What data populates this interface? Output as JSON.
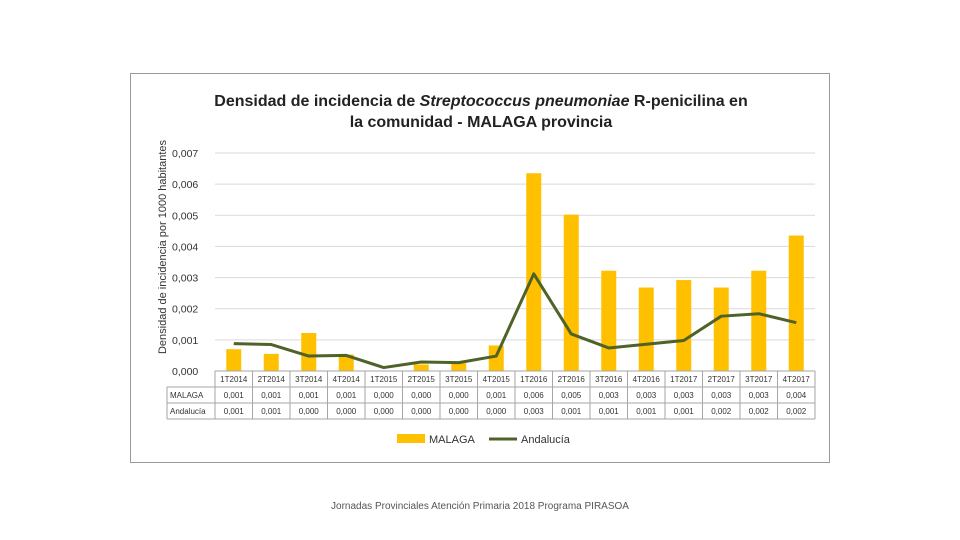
{
  "chart_data": {
    "type": "bar+line",
    "title_line1_pre": "Densidad de incidencia de ",
    "title_line1_italic": "Streptococcus pneumoniae",
    "title_line1_post": " R-penicilina en",
    "title_line2": "la comunidad - MALAGA provincia",
    "ylabel": "Densidad de incidencia por 1000 habitantes",
    "ylim": [
      0,
      0.007
    ],
    "yticks": [
      "0,000",
      "0,001",
      "0,002",
      "0,003",
      "0,004",
      "0,005",
      "0,006",
      "0,007"
    ],
    "categories": [
      "1T2014",
      "2T2014",
      "3T2014",
      "4T2014",
      "1T2015",
      "2T2015",
      "3T2015",
      "4T2015",
      "1T2016",
      "2T2016",
      "3T2016",
      "4T2016",
      "1T2017",
      "2T2017",
      "3T2017",
      "4T2017"
    ],
    "series": [
      {
        "name": "MALAGA",
        "kind": "bar",
        "color": "#FFC000",
        "values": [
          0.0007,
          0.00055,
          0.00122,
          0.00053,
          1e-05,
          0.00021,
          0.00025,
          0.00082,
          0.00635,
          0.00502,
          0.00322,
          0.00268,
          0.00292,
          0.00268,
          0.00322,
          0.00435
        ],
        "table_values": [
          "0,001",
          "0,001",
          "0,001",
          "0,001",
          "0,000",
          "0,000",
          "0,000",
          "0,001",
          "0,006",
          "0,005",
          "0,003",
          "0,003",
          "0,003",
          "0,003",
          "0,003",
          "0,004"
        ]
      },
      {
        "name": "Andalucía",
        "kind": "line",
        "color": "#4F6228",
        "values": [
          0.00088,
          0.00085,
          0.00048,
          0.0005,
          0.00011,
          0.00029,
          0.00027,
          0.00048,
          0.00312,
          0.00119,
          0.00074,
          0.00086,
          0.00098,
          0.00176,
          0.00184,
          0.00155
        ],
        "table_values": [
          "0,001",
          "0,001",
          "0,000",
          "0,000",
          "0,000",
          "0,000",
          "0,000",
          "0,000",
          "0,003",
          "0,001",
          "0,001",
          "0,001",
          "0,001",
          "0,002",
          "0,002",
          "0,002"
        ]
      }
    ],
    "legend": [
      "MALAGA",
      "Andalucía"
    ]
  },
  "footer_text": "Jornadas Provinciales Atención Primaria 2018 Programa PIRASOA"
}
